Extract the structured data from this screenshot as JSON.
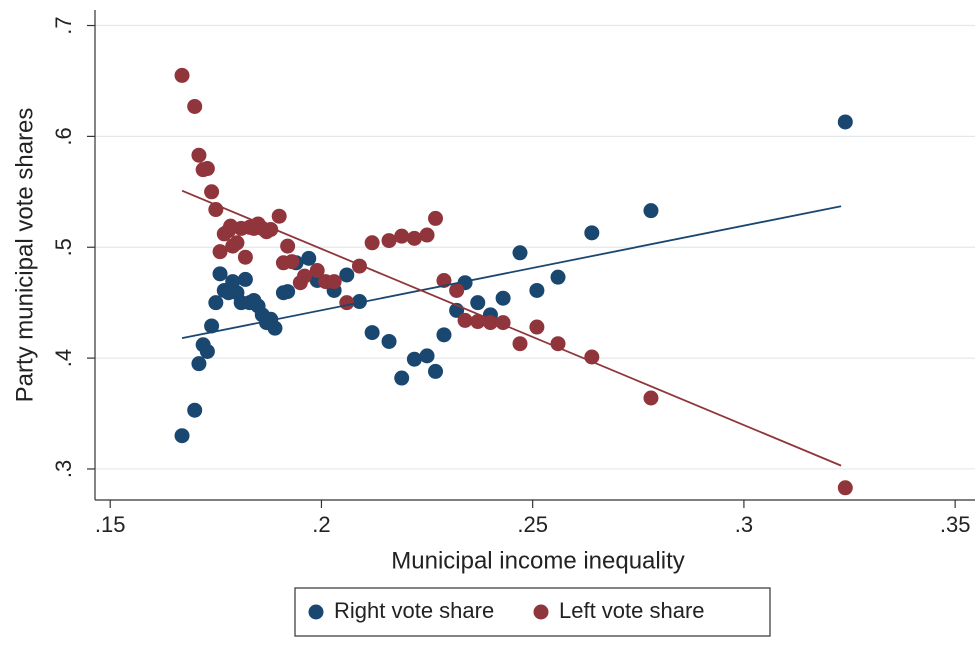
{
  "chart_data": {
    "type": "scatter",
    "x_label": "Municipal income inequality",
    "y_label": "Party municipal vote shares",
    "xlim": [
      0.1464,
      0.3547
    ],
    "ylim": [
      0.272,
      0.714
    ],
    "xticks": [
      {
        "value": 0.15,
        "label": ".15"
      },
      {
        "value": 0.2,
        "label": ".2"
      },
      {
        "value": 0.25,
        "label": ".25"
      },
      {
        "value": 0.3,
        "label": ".3"
      },
      {
        "value": 0.35,
        "label": ".35"
      }
    ],
    "yticks": [
      {
        "value": 0.3,
        "label": ".3"
      },
      {
        "value": 0.4,
        "label": ".4"
      },
      {
        "value": 0.5,
        "label": ".5"
      },
      {
        "value": 0.6,
        "label": ".6"
      },
      {
        "value": 0.7,
        "label": ".7"
      }
    ],
    "grid": true,
    "legend": "bottom",
    "series": [
      {
        "name": "Right vote share",
        "color": "#1a476f",
        "x": [
          0.167,
          0.17,
          0.171,
          0.172,
          0.173,
          0.174,
          0.175,
          0.176,
          0.177,
          0.178,
          0.179,
          0.18,
          0.181,
          0.182,
          0.183,
          0.184,
          0.185,
          0.186,
          0.187,
          0.188,
          0.189,
          0.191,
          0.192,
          0.194,
          0.197,
          0.199,
          0.203,
          0.206,
          0.209,
          0.212,
          0.216,
          0.219,
          0.222,
          0.225,
          0.227,
          0.229,
          0.232,
          0.234,
          0.237,
          0.24,
          0.243,
          0.247,
          0.251,
          0.256,
          0.264,
          0.278,
          0.324
        ],
        "values": [
          0.33,
          0.353,
          0.395,
          0.412,
          0.406,
          0.429,
          0.45,
          0.476,
          0.461,
          0.459,
          0.469,
          0.459,
          0.45,
          0.471,
          0.45,
          0.452,
          0.447,
          0.439,
          0.432,
          0.435,
          0.427,
          0.459,
          0.46,
          0.486,
          0.49,
          0.47,
          0.461,
          0.475,
          0.451,
          0.423,
          0.415,
          0.382,
          0.399,
          0.402,
          0.388,
          0.421,
          0.443,
          0.468,
          0.45,
          0.439,
          0.454,
          0.495,
          0.461,
          0.473,
          0.513,
          0.533,
          0.613
        ]
      },
      {
        "name": "Left vote share",
        "color": "#90353b",
        "x": [
          0.167,
          0.17,
          0.171,
          0.172,
          0.173,
          0.174,
          0.175,
          0.176,
          0.177,
          0.178,
          0.1785,
          0.179,
          0.18,
          0.181,
          0.182,
          0.183,
          0.184,
          0.185,
          0.186,
          0.187,
          0.188,
          0.19,
          0.191,
          0.192,
          0.193,
          0.195,
          0.196,
          0.199,
          0.201,
          0.203,
          0.206,
          0.209,
          0.212,
          0.216,
          0.219,
          0.222,
          0.225,
          0.227,
          0.229,
          0.232,
          0.234,
          0.237,
          0.24,
          0.243,
          0.247,
          0.251,
          0.256,
          0.264,
          0.278,
          0.324
        ],
        "values": [
          0.655,
          0.627,
          0.583,
          0.57,
          0.571,
          0.55,
          0.534,
          0.496,
          0.512,
          0.515,
          0.519,
          0.501,
          0.504,
          0.517,
          0.491,
          0.518,
          0.517,
          0.521,
          0.517,
          0.514,
          0.516,
          0.528,
          0.486,
          0.501,
          0.487,
          0.468,
          0.474,
          0.479,
          0.469,
          0.469,
          0.45,
          0.483,
          0.504,
          0.506,
          0.51,
          0.508,
          0.511,
          0.526,
          0.47,
          0.461,
          0.434,
          0.433,
          0.432,
          0.432,
          0.413,
          0.428,
          0.413,
          0.401,
          0.364,
          0.283
        ]
      }
    ],
    "fit_lines": [
      {
        "color": "#1a476f",
        "x": [
          0.167,
          0.323
        ],
        "values": [
          0.418,
          0.537
        ]
      },
      {
        "color": "#90353b",
        "x": [
          0.167,
          0.323
        ],
        "values": [
          0.551,
          0.303
        ]
      }
    ]
  }
}
